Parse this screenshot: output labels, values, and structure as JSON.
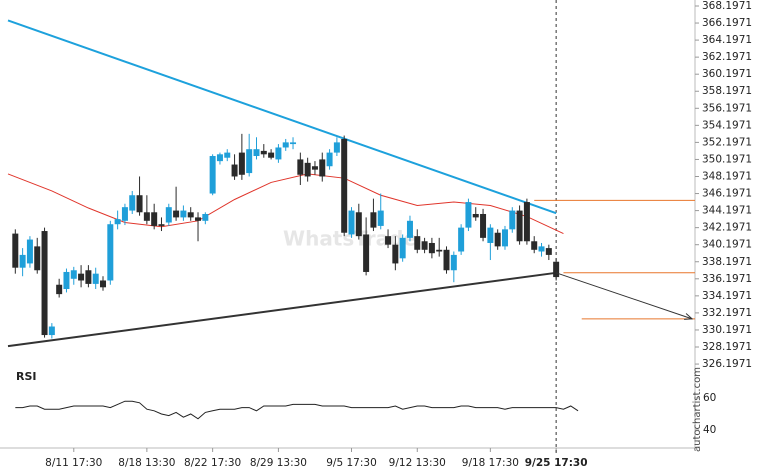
{
  "chart_data": {
    "type": "candlestick",
    "watermark": "WhatsTrade",
    "source": "autochartist.com",
    "rsi_label": "RSI",
    "up_color": "#1f9fd9",
    "down_color": "#2a2a2a",
    "ma_color": "#e0352b",
    "xlim": [
      -1,
      93
    ],
    "ylim": [
      325.5,
      368.9
    ],
    "yticks": [
      368.1971,
      366.1971,
      364.1971,
      362.1971,
      360.1971,
      358.1971,
      356.1971,
      354.1971,
      352.1971,
      350.1971,
      348.1971,
      346.1971,
      344.1971,
      342.1971,
      340.1971,
      338.1971,
      336.1971,
      334.1971,
      332.1971,
      330.1971,
      328.1971,
      326.1971
    ],
    "xticks": [
      {
        "value": 8,
        "label": "8/11 17:30"
      },
      {
        "value": 18,
        "label": "8/18 13:30"
      },
      {
        "value": 27,
        "label": "8/22 17:30"
      },
      {
        "value": 36,
        "label": "8/29 13:30"
      },
      {
        "value": 46,
        "label": "9/5 17:30"
      },
      {
        "value": 55,
        "label": "9/12 13:30"
      },
      {
        "value": 65,
        "label": "9/18 17:30"
      },
      {
        "value": 74,
        "label": "9/25 17:30"
      }
    ],
    "current_x": 74,
    "candles": [
      [
        341.5,
        342.0,
        336.8,
        337.5
      ],
      [
        337.5,
        339.8,
        336.5,
        339.0
      ],
      [
        338.0,
        341.2,
        337.5,
        340.8
      ],
      [
        340.0,
        341.0,
        336.8,
        337.2
      ],
      [
        341.8,
        342.2,
        329.3,
        329.6
      ],
      [
        329.6,
        331.0,
        329.2,
        330.6
      ],
      [
        335.5,
        336.2,
        334.0,
        334.4
      ],
      [
        335.0,
        337.4,
        334.6,
        337.0
      ],
      [
        336.2,
        337.6,
        335.5,
        337.2
      ],
      [
        336.8,
        337.8,
        335.2,
        336.0
      ],
      [
        337.2,
        337.8,
        335.2,
        335.6
      ],
      [
        335.6,
        337.5,
        335.0,
        336.8
      ],
      [
        336.0,
        336.5,
        334.8,
        335.2
      ],
      [
        336.0,
        343.0,
        335.5,
        342.6
      ],
      [
        342.6,
        344.2,
        342.0,
        343.2
      ],
      [
        343.0,
        345.0,
        342.5,
        344.6
      ],
      [
        344.2,
        346.5,
        343.8,
        346.0
      ],
      [
        346.0,
        348.2,
        343.6,
        344.0
      ],
      [
        344.0,
        346.0,
        342.6,
        343.0
      ],
      [
        344.0,
        345.0,
        342.0,
        342.4
      ],
      [
        342.6,
        343.4,
        341.8,
        342.4
      ],
      [
        342.8,
        345.0,
        342.4,
        344.6
      ],
      [
        344.2,
        347.0,
        343.0,
        343.4
      ],
      [
        343.4,
        344.8,
        343.0,
        344.2
      ],
      [
        344.0,
        344.6,
        343.0,
        343.4
      ],
      [
        343.4,
        344.0,
        340.6,
        343.0
      ],
      [
        343.0,
        344.0,
        342.6,
        343.8
      ],
      [
        346.2,
        350.8,
        346.0,
        350.6
      ],
      [
        350.0,
        351.0,
        349.6,
        350.8
      ],
      [
        350.4,
        351.4,
        350.0,
        351.0
      ],
      [
        349.6,
        350.8,
        347.8,
        348.2
      ],
      [
        351.0,
        353.2,
        347.8,
        348.4
      ],
      [
        348.6,
        353.2,
        348.2,
        351.4
      ],
      [
        350.6,
        352.8,
        350.2,
        351.4
      ],
      [
        351.2,
        352.0,
        350.4,
        350.8
      ],
      [
        351.0,
        351.4,
        350.2,
        350.4
      ],
      [
        350.2,
        352.0,
        349.8,
        351.6
      ],
      [
        351.6,
        352.6,
        351.2,
        352.2
      ],
      [
        352.0,
        352.8,
        351.4,
        352.2
      ],
      [
        350.2,
        351.0,
        347.2,
        348.4
      ],
      [
        349.8,
        350.4,
        347.6,
        348.2
      ],
      [
        349.4,
        350.0,
        348.4,
        349.0
      ],
      [
        350.2,
        351.0,
        347.6,
        348.2
      ],
      [
        349.4,
        351.4,
        349.0,
        351.0
      ],
      [
        351.0,
        352.8,
        350.6,
        352.2
      ],
      [
        352.6,
        353.0,
        341.2,
        341.6
      ],
      [
        341.4,
        344.6,
        341.0,
        344.2
      ],
      [
        344.0,
        345.0,
        340.8,
        341.2
      ],
      [
        341.4,
        343.4,
        336.6,
        337.0
      ],
      [
        344.0,
        345.6,
        341.8,
        342.2
      ],
      [
        342.4,
        346.2,
        342.0,
        344.2
      ],
      [
        341.2,
        342.0,
        339.8,
        340.2
      ],
      [
        340.2,
        341.2,
        337.2,
        338.0
      ],
      [
        338.6,
        341.4,
        338.2,
        341.0
      ],
      [
        341.0,
        343.6,
        340.6,
        343.0
      ],
      [
        341.2,
        342.0,
        339.2,
        339.6
      ],
      [
        340.6,
        341.0,
        339.2,
        339.6
      ],
      [
        340.4,
        341.0,
        338.6,
        339.2
      ],
      [
        339.6,
        341.0,
        338.8,
        339.4
      ],
      [
        339.6,
        340.0,
        336.8,
        337.2
      ],
      [
        337.2,
        339.4,
        335.8,
        339.0
      ],
      [
        339.4,
        342.6,
        339.0,
        342.2
      ],
      [
        342.2,
        345.6,
        341.8,
        345.2
      ],
      [
        343.8,
        344.6,
        343.0,
        343.4
      ],
      [
        343.8,
        344.4,
        340.6,
        341.0
      ],
      [
        340.4,
        342.6,
        338.4,
        342.2
      ],
      [
        341.6,
        342.0,
        339.6,
        340.0
      ],
      [
        340.0,
        342.4,
        339.6,
        342.0
      ],
      [
        342.0,
        344.6,
        341.6,
        344.2
      ],
      [
        344.2,
        344.8,
        340.2,
        340.6
      ],
      [
        345.2,
        345.6,
        340.2,
        340.6
      ],
      [
        340.6,
        341.2,
        339.2,
        339.6
      ],
      [
        339.4,
        340.4,
        338.8,
        340.0
      ],
      [
        339.8,
        340.2,
        338.4,
        339.0
      ],
      [
        338.2,
        338.6,
        336.0,
        336.4
      ]
    ],
    "ma": {
      "x": [
        -1,
        5,
        10,
        15,
        20,
        25,
        30,
        35,
        40,
        45,
        50,
        55,
        60,
        65,
        70,
        75
      ],
      "values": [
        348.5,
        346.5,
        344.5,
        342.8,
        342.3,
        343,
        345.5,
        347.5,
        348.5,
        348,
        346,
        344.8,
        345.2,
        344.8,
        343.5,
        341.5
      ]
    },
    "trendlines": [
      {
        "color": "#1da1dc",
        "x": [
          -1,
          74
        ],
        "values": [
          366.5,
          343.9
        ]
      },
      {
        "color": "#333333",
        "x": [
          -1,
          74
        ],
        "values": [
          328.3,
          336.9
        ]
      }
    ],
    "arrow": {
      "color": "#333333",
      "x": [
        74,
        92.6
      ],
      "values": [
        336.9,
        331.5
      ]
    },
    "levels": [
      {
        "color": "#e8762c",
        "x": [
          71,
          93
        ],
        "value": 345.4
      },
      {
        "color": "#e8762c",
        "x": [
          75,
          93
        ],
        "value": 336.9
      },
      {
        "color": "#e8762c",
        "x": [
          77.5,
          93
        ],
        "value": 331.5
      }
    ],
    "rsi": {
      "ylim": [
        28.75,
        71.25
      ],
      "yticks": [
        60,
        40
      ],
      "values": [
        54,
        54,
        55,
        55,
        53,
        53,
        53,
        54,
        55,
        55,
        55,
        55,
        55,
        54,
        56,
        58,
        58,
        57,
        53,
        52,
        50,
        49,
        51,
        48,
        50,
        47,
        51,
        52,
        53,
        53,
        53,
        54,
        54,
        52,
        55,
        55,
        55,
        55,
        56,
        56,
        56,
        56,
        55,
        55,
        55,
        55,
        54,
        54,
        54,
        54,
        54,
        54,
        55,
        53,
        54,
        55,
        55,
        54,
        54,
        54,
        54,
        55,
        55,
        54,
        54,
        54,
        54,
        53,
        54,
        54,
        54,
        54,
        54,
        54,
        54,
        53,
        55,
        52
      ]
    }
  }
}
